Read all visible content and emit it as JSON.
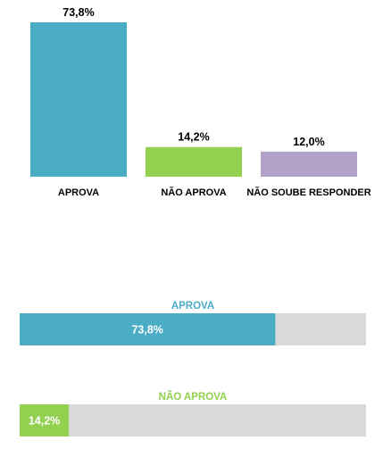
{
  "chart_data": [
    {
      "type": "bar",
      "title": "",
      "xlabel": "",
      "ylabel": "",
      "ylim": [
        0,
        73.8
      ],
      "grid": false,
      "categories": [
        "APROVA",
        "NÃO APROVA",
        "NÃO SOUBE RESPONDER"
      ],
      "values": [
        73.8,
        14.2,
        12.0
      ],
      "value_labels": [
        "73,8%",
        "14,2%",
        "12,0%"
      ],
      "colors": [
        "#4bacc6",
        "#92d050",
        "#b3a2c7"
      ]
    },
    {
      "type": "bar",
      "orientation": "horizontal",
      "title": "",
      "xlim": [
        0,
        100
      ],
      "track_color": "#d9d9d9",
      "items": [
        {
          "label": "APROVA",
          "value": 73.8,
          "value_label": "73,8%",
          "color": "#4bacc6"
        },
        {
          "label": "NÃO APROVA",
          "value": 14.2,
          "value_label": "14,2%",
          "color": "#92d050"
        }
      ]
    }
  ]
}
